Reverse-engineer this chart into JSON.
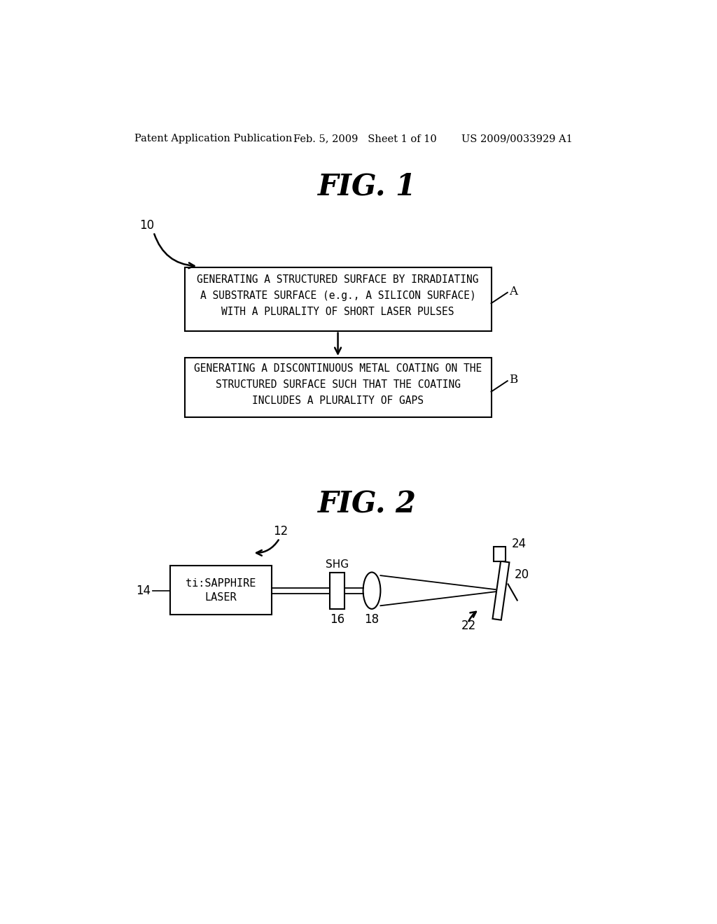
{
  "bg_color": "#ffffff",
  "header_left": "Patent Application Publication",
  "header_mid": "Feb. 5, 2009   Sheet 1 of 10",
  "header_right": "US 2009/0033929 A1",
  "fig1_title": "FIG. 1",
  "fig2_title": "FIG. 2",
  "box_A_lines": [
    "GENERATING A STRUCTURED SURFACE BY IRRADIATING",
    "A SUBSTRATE SURFACE (e.g., A SILICON SURFACE)",
    "WITH A PLURALITY OF SHORT LASER PULSES"
  ],
  "box_B_lines": [
    "GENERATING A DISCONTINUOUS METAL COATING ON THE",
    "STRUCTURED SURFACE SUCH THAT THE COATING",
    "INCLUDES A PLURALITY OF GAPS"
  ],
  "label_10": "10",
  "label_A": "A",
  "label_B": "B",
  "label_12": "12",
  "label_14": "14",
  "label_16": "16",
  "label_18": "18",
  "label_20": "20",
  "label_22": "22",
  "label_24": "24",
  "laser_label_line1": "ti:SAPPHIRE",
  "laser_label_line2": "LASER",
  "shg_label": "SHG"
}
